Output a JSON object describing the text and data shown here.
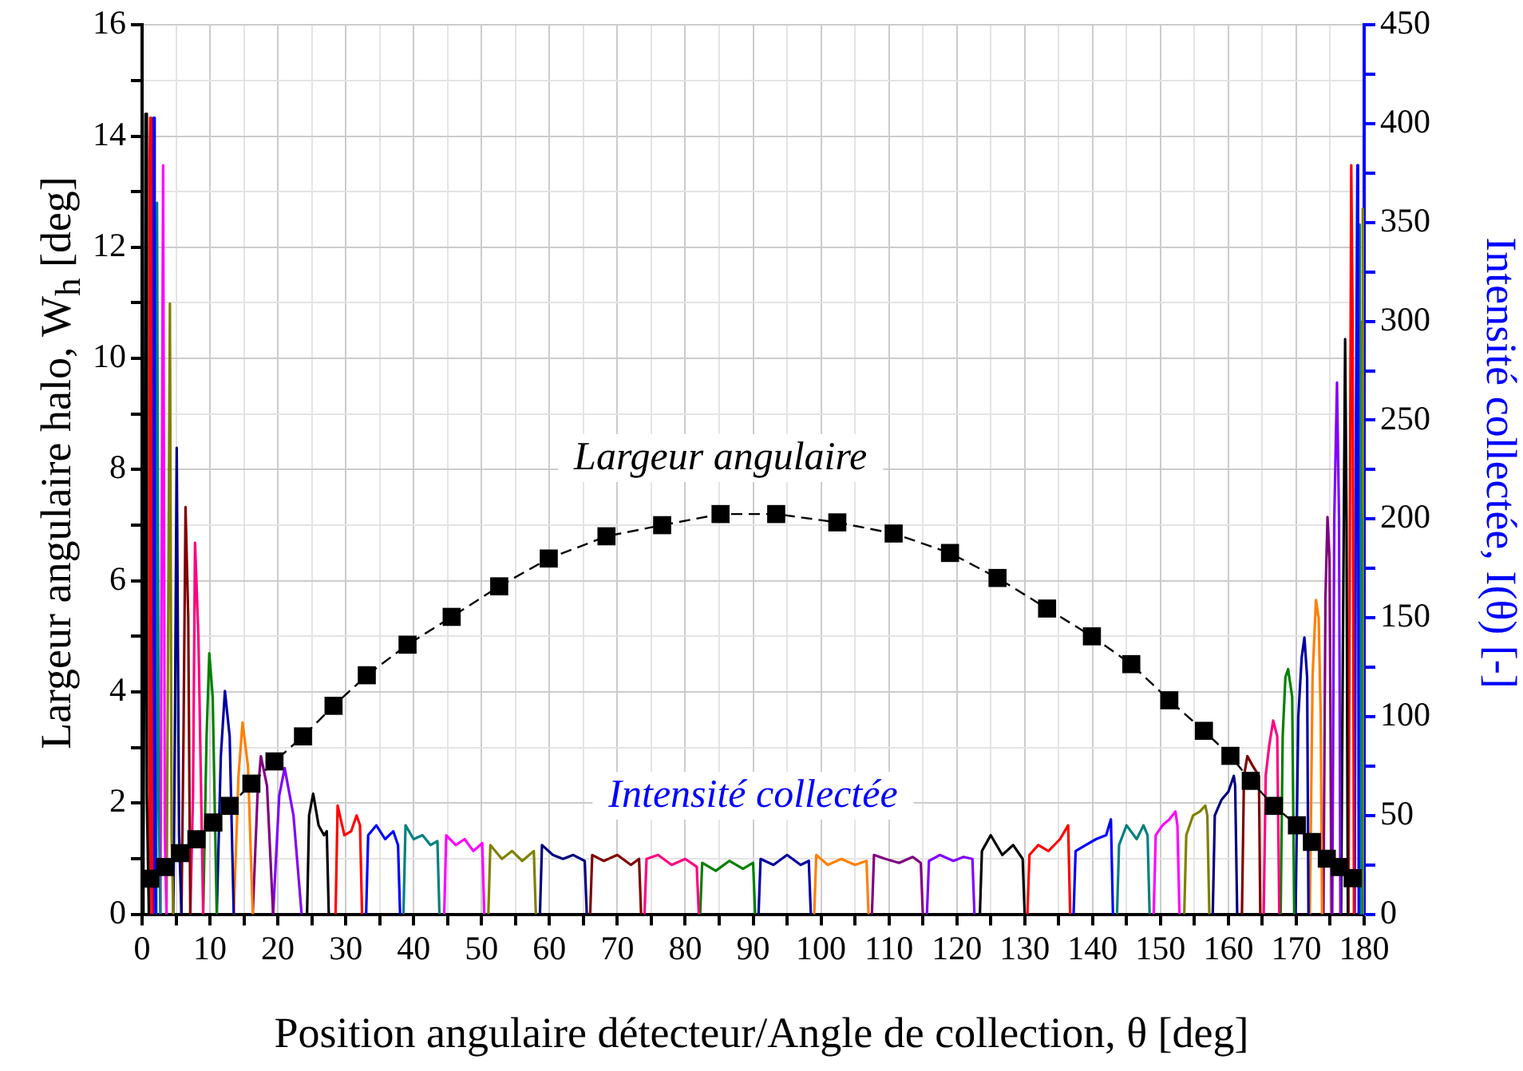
{
  "chart_data": {
    "type": "line",
    "xlabel": "Position angulaire détecteur/Angle de collection, θ [deg]",
    "ylabel": "Largeur angulaire halo, W$_{h}$ [deg]",
    "y2label": "Intensité collectée, I(θ) [-]",
    "annotations": [
      "Intensité collectée"
    ],
    "xlim": [
      0,
      180
    ],
    "xticks": [
      0,
      {
        "value": 5,
        "label": null
      },
      10,
      {
        "value": 15,
        "label": null
      },
      20,
      {
        "value": 25,
        "label": null
      },
      30,
      {
        "value": 35,
        "label": null
      },
      40,
      {
        "value": 45,
        "label": null
      },
      50,
      {
        "value": 55,
        "label": null
      },
      60,
      {
        "value": 65,
        "label": null
      },
      70,
      {
        "value": 75,
        "label": null
      },
      80,
      {
        "value": 85,
        "label": null
      },
      90,
      {
        "value": 95,
        "label": null
      },
      100,
      {
        "value": 105,
        "label": null
      },
      110,
      {
        "value": 115,
        "label": null
      },
      120,
      {
        "value": 125,
        "label": null
      },
      130,
      {
        "value": 135,
        "label": null
      },
      140,
      {
        "value": 145,
        "label": null
      },
      150,
      {
        "value": 155,
        "label": null
      },
      160,
      {
        "value": 165,
        "label": null
      },
      170,
      {
        "value": 175,
        "label": null
      },
      180
    ],
    "ylim": [
      0,
      16
    ],
    "yticks": [
      0,
      {
        "value": 1,
        "label": null
      },
      2,
      {
        "value": 3,
        "label": null
      },
      4,
      {
        "value": 5,
        "label": null
      },
      6,
      {
        "value": 7,
        "label": null
      },
      8,
      {
        "value": 9,
        "label": null
      },
      10,
      {
        "value": 11,
        "label": null
      },
      12,
      {
        "value": 13,
        "label": null
      },
      14,
      {
        "value": 15,
        "label": null
      },
      16
    ],
    "y2lim": [
      0,
      450
    ],
    "y2ticks": [
      0,
      {
        "value": 25,
        "label": null
      },
      50,
      {
        "value": 75,
        "label": null
      },
      100,
      {
        "value": 125,
        "label": null
      },
      150,
      {
        "value": 175,
        "label": null
      },
      200,
      {
        "value": 225,
        "label": null
      },
      250,
      {
        "value": 275,
        "label": null
      },
      300,
      {
        "value": 325,
        "label": null
      },
      350,
      {
        "value": 375,
        "label": null
      },
      400,
      {
        "value": 425,
        "label": null
      },
      450
    ],
    "grid": true,
    "legend": false,
    "marker": "none",
    "line_style": "solid",
    "series": [
      {
        "name": "Largeur angulaire",
        "color": "#000000",
        "marker": "square",
        "line_style": "dashed",
        "x": [
          1.2,
          3.4,
          5.6,
          8.0,
          10.5,
          12.9,
          16.1,
          19.5,
          23.7,
          28.2,
          33.1,
          39.1,
          45.6,
          52.6,
          59.9,
          68.4,
          76.6,
          85.2,
          93.4,
          102.4,
          110.7,
          119.0,
          126.0,
          133.3,
          139.9,
          145.7,
          151.3,
          156.4,
          160.3,
          163.3,
          166.7,
          170.1,
          172.3,
          174.5,
          176.4,
          178.3
        ],
        "values": [
          0.64,
          0.85,
          1.1,
          1.35,
          1.65,
          1.95,
          2.35,
          2.75,
          3.2,
          3.75,
          4.3,
          4.85,
          5.35,
          5.9,
          6.4,
          6.8,
          7.0,
          7.2,
          7.2,
          7.05,
          6.85,
          6.5,
          6.05,
          5.5,
          5.0,
          4.5,
          3.85,
          3.3,
          2.85,
          2.4,
          1.95,
          1.6,
          1.3,
          1.0,
          0.85,
          0.65
        ]
      },
      {
        "axis": "y2",
        "color": "#000000",
        "x": [
          0,
          0.2,
          0.4,
          0.5,
          0.7,
          1.0
        ],
        "values": [
          0,
          30,
          200,
          405,
          60,
          0
        ]
      },
      {
        "axis": "y2",
        "color": "#ff0000",
        "x": [
          1.0,
          1.1,
          1.2,
          1.35,
          1.5
        ],
        "values": [
          0,
          380,
          403,
          150,
          0
        ]
      },
      {
        "axis": "y2",
        "color": "#0000ff",
        "x": [
          1.5,
          1.6,
          1.7,
          1.85,
          2.0
        ],
        "values": [
          0,
          300,
          403,
          120,
          0
        ]
      },
      {
        "axis": "y2",
        "color": "#008080",
        "x": [
          2.0,
          2.1,
          2.2,
          2.45,
          2.7
        ],
        "values": [
          0,
          250,
          360,
          60,
          0
        ]
      },
      {
        "axis": "y2",
        "color": "#ff00ff",
        "x": [
          2.7,
          2.9,
          3.1,
          3.35,
          3.6
        ],
        "values": [
          0,
          200,
          379,
          40,
          0
        ]
      },
      {
        "axis": "y2",
        "color": "#808000",
        "x": [
          3.6,
          3.8,
          4.1,
          4.35,
          4.6
        ],
        "values": [
          0,
          120,
          309,
          40,
          0
        ]
      },
      {
        "axis": "y2",
        "color": "#000080",
        "x": [
          4.6,
          4.85,
          5.1,
          5.45,
          5.8
        ],
        "values": [
          0,
          100,
          236,
          40,
          0
        ]
      },
      {
        "axis": "y2",
        "color": "#800000",
        "x": [
          5.8,
          6.1,
          6.4,
          6.8,
          7.1
        ],
        "values": [
          0,
          90,
          206,
          150,
          0
        ]
      },
      {
        "axis": "y2",
        "color": "#ff0080",
        "x": [
          7.1,
          7.5,
          7.8,
          8.3,
          9.0
        ],
        "values": [
          0,
          60,
          188,
          140,
          0
        ]
      },
      {
        "axis": "y2",
        "color": "#008000",
        "x": [
          9.0,
          9.5,
          9.9,
          10.4,
          11.0
        ],
        "values": [
          0,
          90,
          132,
          110,
          0
        ]
      },
      {
        "axis": "y2",
        "color": "#0000a0",
        "x": [
          11.0,
          11.6,
          12.2,
          12.9,
          13.5
        ],
        "values": [
          0,
          80,
          113,
          90,
          0
        ]
      },
      {
        "axis": "y2",
        "color": "#ff8000",
        "x": [
          13.5,
          14.2,
          14.8,
          15.6,
          16.3
        ],
        "values": [
          0,
          70,
          97,
          75,
          0
        ]
      },
      {
        "axis": "y2",
        "color": "#800080",
        "x": [
          16.3,
          17.0,
          17.5,
          18.4,
          19.3
        ],
        "values": [
          0,
          60,
          80,
          65,
          0
        ]
      },
      {
        "axis": "y2",
        "color": "#8000ff",
        "x": [
          19.3,
          20.2,
          21.0,
          22.3,
          23.5
        ],
        "values": [
          0,
          60,
          74,
          50,
          0
        ]
      },
      {
        "axis": "y2",
        "color": "#000000",
        "x": [
          24.3,
          24.6,
          25.2,
          26.0,
          26.8,
          27.2,
          27.5
        ],
        "values": [
          0,
          50,
          61,
          45,
          40,
          42,
          0
        ]
      },
      {
        "axis": "y2",
        "color": "#ff0000",
        "x": [
          28.5,
          28.8,
          29.8,
          30.8,
          31.6,
          32.1,
          32.4
        ],
        "values": [
          0,
          55,
          40,
          42,
          50,
          45,
          0
        ]
      },
      {
        "axis": "y2",
        "color": "#0000ff",
        "x": [
          33.0,
          33.3,
          34.5,
          35.8,
          37.0,
          37.7,
          38.0
        ],
        "values": [
          0,
          40,
          45,
          38,
          42,
          35,
          0
        ]
      },
      {
        "axis": "y2",
        "color": "#008080",
        "x": [
          38.5,
          38.8,
          40.0,
          41.3,
          42.5,
          43.5,
          43.8
        ],
        "values": [
          0,
          45,
          38,
          40,
          35,
          37,
          0
        ]
      },
      {
        "axis": "y2",
        "color": "#ff00ff",
        "x": [
          44.5,
          44.8,
          46.2,
          47.5,
          48.8,
          50.1,
          50.4
        ],
        "values": [
          0,
          40,
          35,
          38,
          32,
          36,
          0
        ]
      },
      {
        "axis": "y2",
        "color": "#808000",
        "x": [
          51.0,
          51.3,
          53.0,
          54.5,
          56.0,
          57.7,
          58.0
        ],
        "values": [
          0,
          35,
          28,
          32,
          27,
          32,
          0
        ]
      },
      {
        "axis": "y2",
        "color": "#000080",
        "x": [
          58.6,
          58.9,
          60.5,
          62.0,
          63.5,
          65.2,
          65.5
        ],
        "values": [
          0,
          35,
          30,
          28,
          30,
          27,
          0
        ]
      },
      {
        "axis": "y2",
        "color": "#800000",
        "x": [
          66.0,
          66.3,
          68.0,
          70.0,
          72.0,
          73.2,
          73.5
        ],
        "values": [
          0,
          30,
          27,
          30,
          25,
          28,
          0
        ]
      },
      {
        "axis": "y2",
        "color": "#ff0080",
        "x": [
          74.0,
          74.3,
          76.0,
          78.0,
          80.0,
          81.7,
          82.0
        ],
        "values": [
          0,
          28,
          30,
          25,
          28,
          24,
          0
        ]
      },
      {
        "axis": "y2",
        "color": "#008000",
        "x": [
          82.2,
          82.5,
          84.5,
          86.5,
          88.5,
          90.0,
          90.3
        ],
        "values": [
          0,
          26,
          22,
          27,
          23,
          26,
          0
        ]
      },
      {
        "axis": "y2",
        "color": "#0000a0",
        "x": [
          90.8,
          91.1,
          93.0,
          95.0,
          97.0,
          98.2,
          98.5
        ],
        "values": [
          0,
          28,
          25,
          30,
          25,
          27,
          0
        ]
      },
      {
        "axis": "y2",
        "color": "#ff8000",
        "x": [
          99.0,
          99.3,
          101.0,
          103.0,
          105.0,
          106.7,
          107.0
        ],
        "values": [
          0,
          30,
          25,
          28,
          25,
          27,
          0
        ]
      },
      {
        "axis": "y2",
        "color": "#800080",
        "x": [
          107.5,
          107.8,
          109.5,
          111.5,
          113.5,
          114.7,
          115.0
        ],
        "values": [
          0,
          30,
          28,
          26,
          29,
          26,
          0
        ]
      },
      {
        "axis": "y2",
        "color": "#8000ff",
        "x": [
          115.6,
          115.9,
          117.5,
          119.5,
          121.0,
          122.3,
          122.6
        ],
        "values": [
          0,
          27,
          30,
          27,
          29,
          28,
          0
        ]
      },
      {
        "axis": "y2",
        "color": "#000000",
        "x": [
          123.4,
          123.7,
          125.0,
          126.7,
          128.3,
          129.7,
          130.0
        ],
        "values": [
          0,
          32,
          40,
          30,
          35,
          28,
          0
        ]
      },
      {
        "axis": "y2",
        "color": "#ff0000",
        "x": [
          130.4,
          130.7,
          132.0,
          133.5,
          135.2,
          136.4,
          136.7
        ],
        "values": [
          0,
          30,
          35,
          32,
          38,
          45,
          0
        ]
      },
      {
        "axis": "y2",
        "color": "#0000ff",
        "x": [
          137.2,
          137.5,
          139.0,
          140.5,
          142.0,
          142.7,
          143.0
        ],
        "values": [
          0,
          32,
          35,
          38,
          40,
          48,
          0
        ]
      },
      {
        "axis": "y2",
        "color": "#008080",
        "x": [
          143.6,
          143.9,
          145.0,
          146.5,
          147.5,
          148.1,
          148.4
        ],
        "values": [
          0,
          35,
          45,
          38,
          45,
          40,
          0
        ]
      },
      {
        "axis": "y2",
        "color": "#ff00ff",
        "x": [
          149.0,
          149.3,
          150.3,
          151.3,
          152.2,
          152.5,
          152.8
        ],
        "values": [
          0,
          40,
          45,
          48,
          52,
          45,
          0
        ]
      },
      {
        "axis": "y2",
        "color": "#808000",
        "x": [
          153.5,
          153.8,
          154.8,
          155.8,
          156.6,
          156.9,
          157.2
        ],
        "values": [
          0,
          40,
          50,
          52,
          55,
          50,
          0
        ]
      },
      {
        "axis": "y2",
        "color": "#000080",
        "x": [
          157.7,
          158.0,
          159.0,
          160.0,
          160.8,
          161.0,
          161.3
        ],
        "values": [
          0,
          50,
          58,
          62,
          70,
          65,
          0
        ]
      },
      {
        "axis": "y2",
        "color": "#800000",
        "x": [
          162.0,
          162.3,
          162.8,
          163.6,
          164.5,
          164.7
        ],
        "values": [
          0,
          70,
          80,
          75,
          70,
          0
        ]
      },
      {
        "axis": "y2",
        "color": "#ff0080",
        "x": [
          165.2,
          165.5,
          166.0,
          166.6,
          167.2,
          167.5
        ],
        "values": [
          0,
          70,
          85,
          98,
          90,
          0
        ]
      },
      {
        "axis": "y2",
        "color": "#008000",
        "x": [
          167.7,
          168.0,
          168.4,
          168.8,
          169.4,
          169.7
        ],
        "values": [
          0,
          90,
          120,
          124,
          110,
          0
        ]
      },
      {
        "axis": "y2",
        "color": "#0000a0",
        "x": [
          169.9,
          170.3,
          170.8,
          171.2,
          171.6,
          171.8
        ],
        "values": [
          0,
          100,
          130,
          140,
          120,
          0
        ]
      },
      {
        "axis": "y2",
        "color": "#ff8000",
        "x": [
          172.0,
          172.4,
          172.9,
          173.3,
          173.6,
          173.8
        ],
        "values": [
          0,
          120,
          159,
          150,
          100,
          0
        ]
      },
      {
        "axis": "y2",
        "color": "#800080",
        "x": [
          174.0,
          174.3,
          174.6,
          174.9,
          175.2
        ],
        "values": [
          0,
          160,
          201,
          180,
          0
        ]
      },
      {
        "axis": "y2",
        "color": "#8000ff",
        "x": [
          175.3,
          175.6,
          176.0,
          176.3,
          176.5
        ],
        "values": [
          0,
          200,
          269,
          200,
          0
        ]
      },
      {
        "axis": "y2",
        "color": "#000000",
        "x": [
          176.6,
          176.9,
          177.2,
          177.4,
          177.6
        ],
        "values": [
          0,
          150,
          291,
          200,
          0
        ]
      },
      {
        "axis": "y2",
        "color": "#ff0000",
        "x": [
          177.7,
          177.9,
          178.1,
          178.3,
          178.5
        ],
        "values": [
          0,
          200,
          379,
          300,
          0
        ]
      },
      {
        "axis": "y2",
        "color": "#0000ff",
        "x": [
          178.6,
          178.8,
          179.0,
          179.1,
          179.2
        ],
        "values": [
          0,
          250,
          379,
          300,
          0
        ]
      },
      {
        "axis": "y2",
        "color": "#008080",
        "x": [
          179.2,
          179.3,
          179.4,
          179.5,
          179.6
        ],
        "values": [
          0,
          349,
          300,
          200,
          0
        ]
      },
      {
        "axis": "y2",
        "color": "#808000",
        "x": [
          179.6,
          179.7,
          179.8,
          179.9,
          180.0
        ],
        "values": [
          0,
          300,
          357,
          300,
          0
        ]
      }
    ]
  }
}
